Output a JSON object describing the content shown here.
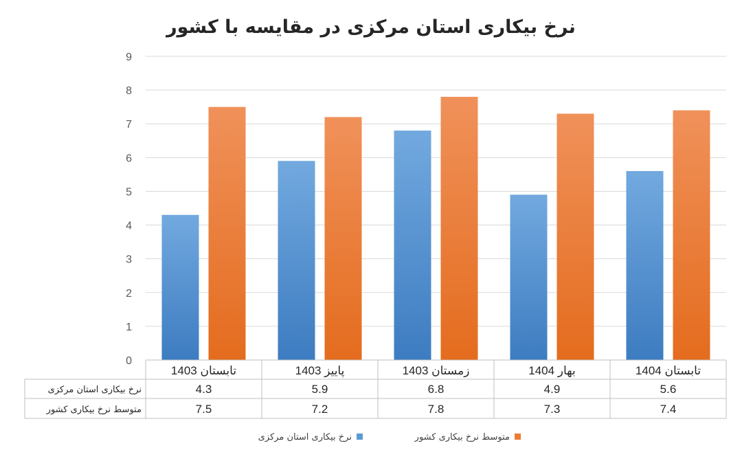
{
  "chart_data": {
    "type": "bar",
    "title": "نرخ بیکاری استان مرکزی در مقایسه با کشور",
    "categories": [
      "تابستان 1403",
      "پاییز 1403",
      "زمستان 1403",
      "بهار 1404",
      "تابستان 1404"
    ],
    "series": [
      {
        "name": "نرخ بیکاری استان مرکزی",
        "values": [
          4.3,
          5.9,
          6.8,
          4.9,
          5.6
        ],
        "color": "#5b9bd5",
        "table_values": [
          "4.3",
          "5.9",
          "6.8",
          "4.9",
          "5.6"
        ]
      },
      {
        "name": "متوسط نرخ بیکاری کشور",
        "values": [
          7.5,
          7.2,
          7.8,
          7.3,
          7.4
        ],
        "color": "#ed7d31",
        "table_values": [
          "7.5",
          "7.2",
          "7.8",
          "7.3",
          "7.4"
        ]
      }
    ],
    "ylim": [
      0,
      9
    ],
    "yticks": [
      "0",
      "1",
      "2",
      "3",
      "4",
      "5",
      "6",
      "7",
      "8",
      "9"
    ],
    "grid": true,
    "legend_placement": "bottom",
    "data_table": true
  }
}
